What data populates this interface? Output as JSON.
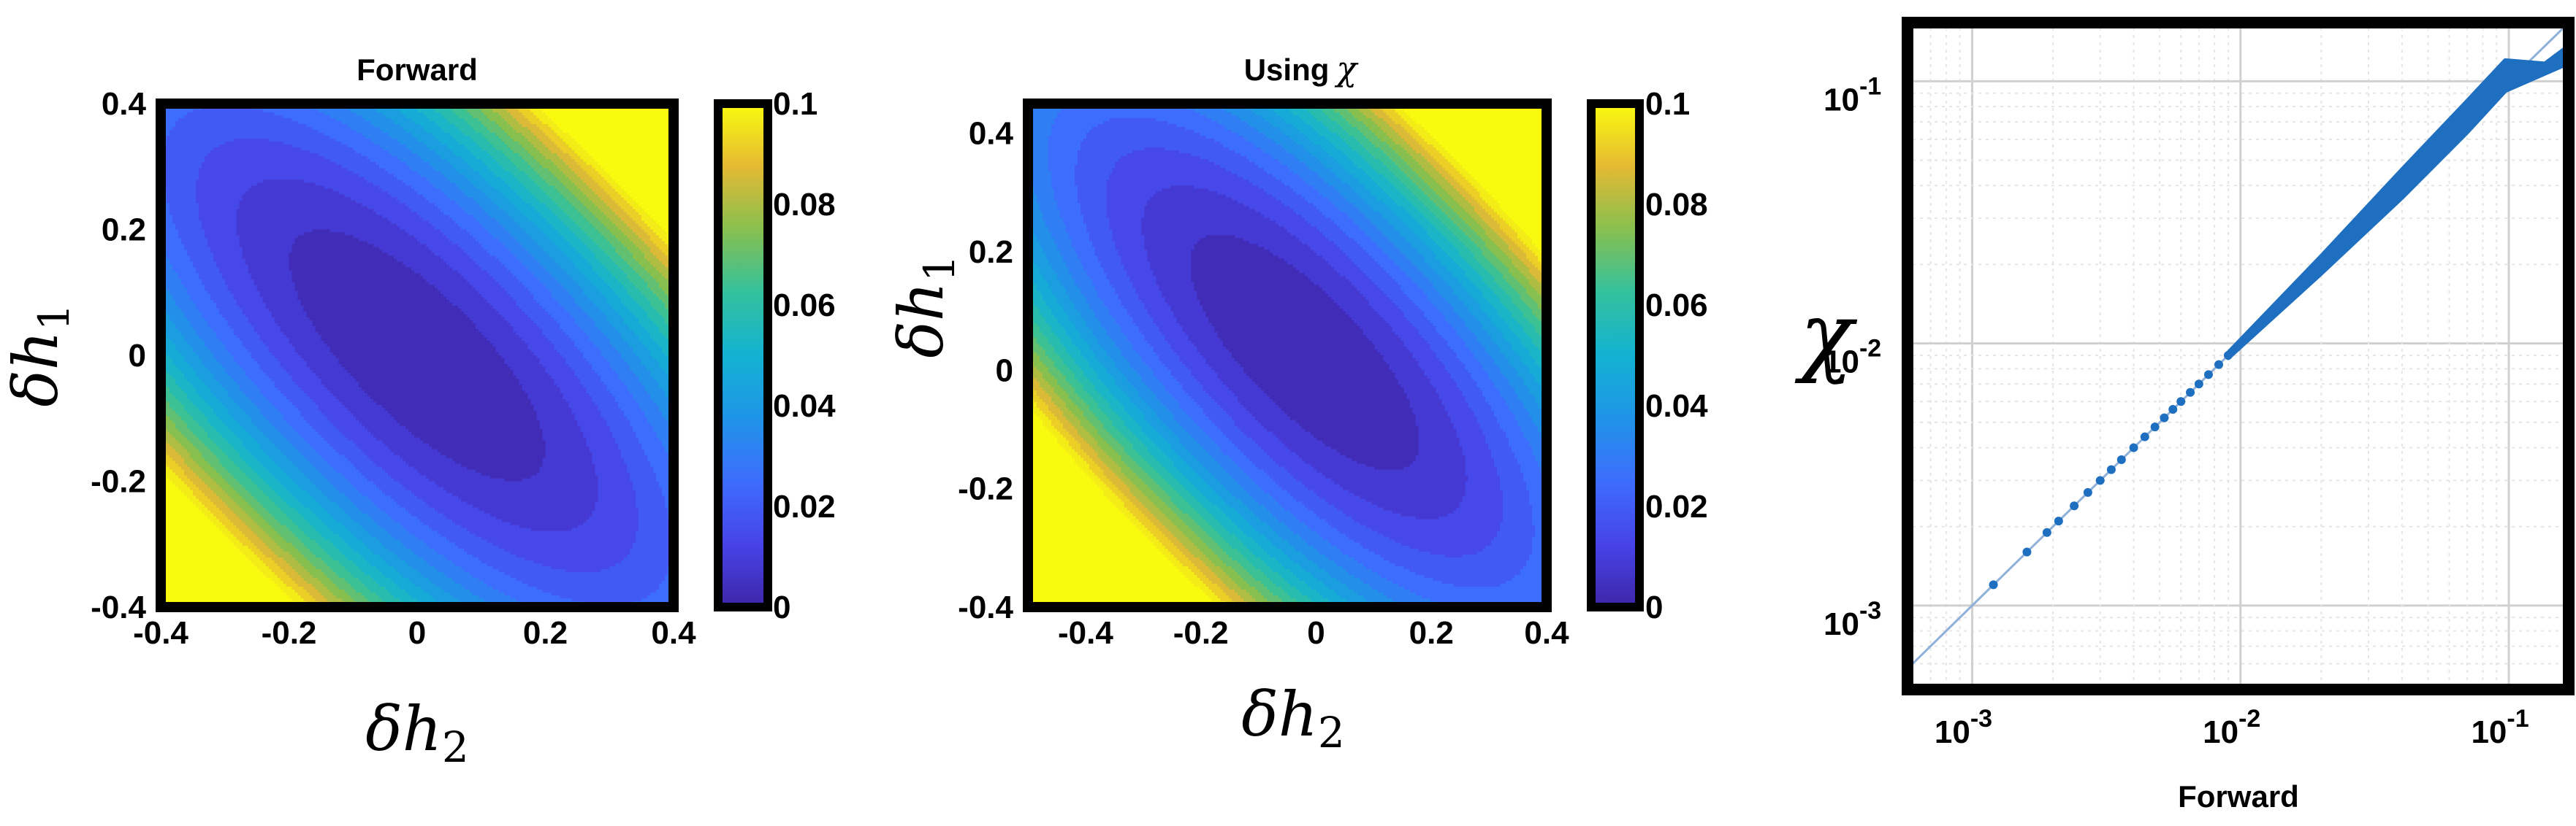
{
  "chart_data": [
    {
      "type": "heatmap",
      "title": "Forward",
      "xlabel": "δh",
      "xlabel_sub": "2",
      "ylabel": "δh",
      "ylabel_sub": "1",
      "xlim": [
        -0.4,
        0.4
      ],
      "ylim": [
        -0.4,
        0.4
      ],
      "xticks": [
        "-0.4",
        "-0.2",
        "0",
        "0.2",
        "0.4"
      ],
      "yticks": [
        "0.4",
        "0.2",
        "0",
        "-0.2",
        "-0.4"
      ],
      "colorbar_ticks": [
        "0.1",
        "0.08",
        "0.06",
        "0.04",
        "0.02",
        "0"
      ],
      "clim": [
        0,
        0.1
      ],
      "colormap": "parula",
      "field": {
        "center": [
          0,
          0
        ],
        "a11": 0.33,
        "a22": 0.33,
        "a12": 0.25
      }
    },
    {
      "type": "heatmap",
      "title": "Using",
      "title_symbol": "χ",
      "xlabel": "δh",
      "xlabel_sub": "2",
      "ylabel": "δh",
      "ylabel_sub": "1",
      "xlim": [
        -0.5,
        0.4
      ],
      "ylim": [
        -0.4,
        0.45
      ],
      "xticks": [
        "-0.4",
        "-0.2",
        "0",
        "0.2",
        "0.4"
      ],
      "yticks": [
        "0.4",
        "0.2",
        "0",
        "-0.2",
        "-0.4"
      ],
      "colorbar_ticks": [
        "0.1",
        "0.08",
        "0.06",
        "0.04",
        "0.02",
        "0"
      ],
      "clim": [
        0,
        0.1
      ],
      "colormap": "parula",
      "field": {
        "center": [
          -0.02,
          0.03
        ],
        "a11": 0.33,
        "a22": 0.33,
        "a12": 0.25
      }
    },
    {
      "type": "scatter",
      "xlabel": "Forward",
      "ylabel": "χ",
      "xscale": "log",
      "yscale": "log",
      "xlim": [
        0.0006,
        0.16
      ],
      "ylim": [
        0.0005,
        0.16
      ],
      "xticks": [
        {
          "value": 0.001,
          "base": "10",
          "exp": "-3"
        },
        {
          "value": 0.01,
          "base": "10",
          "exp": "-2"
        },
        {
          "value": 0.1,
          "base": "10",
          "exp": "-1"
        }
      ],
      "yticks": [
        {
          "value": 0.001,
          "base": "10",
          "exp": "-3"
        },
        {
          "value": 0.01,
          "base": "10",
          "exp": "-2"
        },
        {
          "value": 0.1,
          "base": "10",
          "exp": "-1"
        }
      ],
      "grid": true,
      "reference_line": "y = x",
      "color": "#1f6fc0",
      "points": [
        [
          0.0012,
          0.0012
        ],
        [
          0.0016,
          0.0016
        ],
        [
          0.0019,
          0.0019
        ],
        [
          0.0021,
          0.0021
        ],
        [
          0.0024,
          0.0024
        ],
        [
          0.0027,
          0.0027
        ],
        [
          0.003,
          0.003
        ],
        [
          0.0033,
          0.0033
        ],
        [
          0.0036,
          0.0036
        ],
        [
          0.004,
          0.004
        ],
        [
          0.0044,
          0.0044
        ],
        [
          0.0048,
          0.0048
        ],
        [
          0.0052,
          0.0052
        ],
        [
          0.0056,
          0.0056
        ],
        [
          0.006,
          0.006
        ],
        [
          0.0065,
          0.0065
        ],
        [
          0.007,
          0.007
        ],
        [
          0.0076,
          0.0076
        ],
        [
          0.0083,
          0.0083
        ],
        [
          0.009,
          0.009
        ]
      ],
      "band_upper": [
        [
          0.009,
          0.0092
        ],
        [
          0.02,
          0.0215
        ],
        [
          0.04,
          0.046
        ],
        [
          0.07,
          0.084
        ],
        [
          0.097,
          0.12
        ]
      ],
      "band_lower": [
        [
          0.009,
          0.0088
        ],
        [
          0.02,
          0.0185
        ],
        [
          0.04,
          0.036
        ],
        [
          0.07,
          0.064
        ],
        [
          0.097,
          0.092
        ],
        [
          0.16,
          0.115
        ]
      ],
      "band_notch": [
        [
          0.16,
          0.115
        ],
        [
          0.097,
          0.092
        ],
        [
          0.16,
          0.135
        ]
      ]
    }
  ]
}
